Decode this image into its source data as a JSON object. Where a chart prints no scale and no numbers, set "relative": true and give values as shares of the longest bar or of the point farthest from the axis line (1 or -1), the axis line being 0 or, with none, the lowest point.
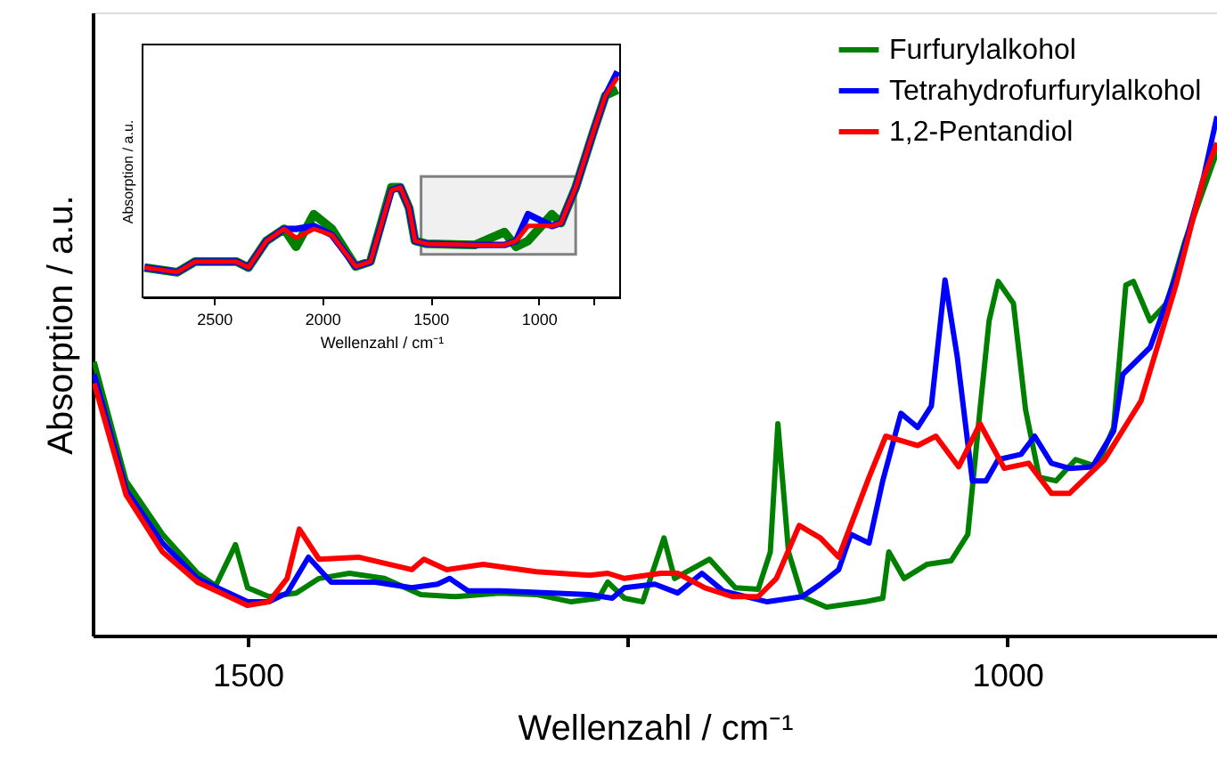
{
  "chart_data": [
    {
      "type": "line",
      "xlabel": "Wellenzahl / cm⁻¹",
      "ylabel": "Absorption / a.u.",
      "relative": true,
      "xlim": [
        1602,
        862
      ],
      "xticks": [
        1500,
        {
          "value": 1250,
          "label": null
        },
        1000
      ],
      "legend": "top right",
      "series": [
        {
          "name": "Furfurylalkohol",
          "color": "#008000",
          "x": [
            1601,
            1580,
            1556,
            1533,
            1521,
            1508,
            1500,
            1486,
            1468,
            1453,
            1433,
            1410,
            1386,
            1363,
            1334,
            1310,
            1287,
            1269,
            1263,
            1252,
            1240,
            1226,
            1219,
            1196,
            1179,
            1164,
            1156,
            1151,
            1144,
            1135,
            1119,
            1094,
            1082,
            1078,
            1068,
            1053,
            1037,
            1026,
            1018,
            1012,
            1006,
            996,
            988,
            979,
            968,
            955,
            941,
            930,
            922,
            917,
            906,
            895,
            883,
            862
          ],
          "values": [
            0.527,
            0.298,
            0.195,
            0.12,
            0.096,
            0.175,
            0.092,
            0.075,
            0.082,
            0.11,
            0.12,
            0.11,
            0.079,
            0.075,
            0.082,
            0.079,
            0.065,
            0.072,
            0.103,
            0.072,
            0.065,
            0.188,
            0.11,
            0.147,
            0.092,
            0.089,
            0.161,
            0.408,
            0.161,
            0.075,
            0.055,
            0.065,
            0.072,
            0.161,
            0.11,
            0.137,
            0.144,
            0.195,
            0.435,
            0.606,
            0.682,
            0.64,
            0.435,
            0.305,
            0.298,
            0.339,
            0.325,
            0.401,
            0.675,
            0.682,
            0.606,
            0.64,
            0.76,
            0.932
          ]
        },
        {
          "name": "Tetrahydrofurfurylalkohol",
          "color": "#0000ff",
          "x": [
            1601,
            1580,
            1556,
            1533,
            1500,
            1486,
            1474,
            1460,
            1445,
            1416,
            1392,
            1375,
            1367,
            1355,
            1334,
            1299,
            1275,
            1260,
            1252,
            1232,
            1217,
            1201,
            1187,
            1158,
            1135,
            1123,
            1111,
            1103,
            1091,
            1082,
            1070,
            1059,
            1050,
            1041,
            1033,
            1023,
            1014,
            1006,
            991,
            982,
            971,
            959,
            944,
            930,
            924,
            906,
            889,
            871,
            862
          ],
          "values": [
            0.503,
            0.281,
            0.178,
            0.11,
            0.065,
            0.065,
            0.082,
            0.151,
            0.103,
            0.103,
            0.092,
            0.099,
            0.11,
            0.086,
            0.086,
            0.082,
            0.079,
            0.072,
            0.092,
            0.099,
            0.082,
            0.12,
            0.086,
            0.065,
            0.075,
            0.099,
            0.127,
            0.195,
            0.178,
            0.298,
            0.428,
            0.401,
            0.442,
            0.685,
            0.538,
            0.298,
            0.298,
            0.339,
            0.349,
            0.384,
            0.332,
            0.322,
            0.325,
            0.394,
            0.503,
            0.555,
            0.692,
            0.88,
            1.0
          ]
        },
        {
          "name": "1,2-Pentandiol",
          "color": "#ff0000",
          "x": [
            1601,
            1580,
            1556,
            1533,
            1500,
            1486,
            1474,
            1466,
            1453,
            1427,
            1392,
            1384,
            1369,
            1345,
            1310,
            1275,
            1263,
            1252,
            1228,
            1217,
            1199,
            1181,
            1164,
            1152,
            1137,
            1123,
            1111,
            1091,
            1080,
            1059,
            1047,
            1032,
            1018,
            1002,
            986,
            971,
            959,
            936,
            912,
            889,
            871,
            862
          ],
          "values": [
            0.486,
            0.271,
            0.161,
            0.103,
            0.058,
            0.065,
            0.11,
            0.205,
            0.147,
            0.151,
            0.127,
            0.147,
            0.127,
            0.137,
            0.123,
            0.116,
            0.12,
            0.11,
            0.12,
            0.12,
            0.092,
            0.075,
            0.075,
            0.11,
            0.212,
            0.188,
            0.151,
            0.305,
            0.384,
            0.366,
            0.384,
            0.325,
            0.408,
            0.322,
            0.332,
            0.274,
            0.274,
            0.339,
            0.452,
            0.675,
            0.88,
            0.949
          ]
        }
      ]
    },
    {
      "type": "line",
      "xlabel": "Wellenzahl / cm⁻¹",
      "ylabel": "Absorption / a.u.",
      "relative": true,
      "xlim": [
        2830,
        625
      ],
      "xticks": [
        2500,
        2000,
        1500,
        1000,
        {
          "value": 750,
          "label": null
        }
      ],
      "bands": [
        {
          "axis": "x",
          "from": 1544,
          "to": 830,
          "color": "#808080"
        }
      ],
      "series": [
        {
          "color": "#008000",
          "x": [
            2821,
            2670,
            2588,
            2396,
            2341,
            2258,
            2176,
            2121,
            2039,
            1956,
            1846,
            1778,
            1681,
            1640,
            1599,
            1572,
            1517,
            1297,
            1159,
            1105,
            1050,
            940,
            898,
            830,
            747,
            692,
            637
          ],
          "values": [
            0.132,
            0.111,
            0.158,
            0.158,
            0.132,
            0.25,
            0.303,
            0.224,
            0.368,
            0.303,
            0.137,
            0.158,
            0.487,
            0.487,
            0.395,
            0.25,
            0.237,
            0.232,
            0.289,
            0.224,
            0.25,
            0.368,
            0.329,
            0.487,
            0.737,
            0.895,
            0.92
          ]
        },
        {
          "color": "#0000ff",
          "x": [
            2821,
            2670,
            2588,
            2396,
            2341,
            2258,
            2176,
            2121,
            2039,
            1956,
            1846,
            1778,
            1681,
            1640,
            1599,
            1572,
            1517,
            1297,
            1159,
            1105,
            1050,
            940,
            898,
            830,
            747,
            692,
            637
          ],
          "values": [
            0.132,
            0.111,
            0.158,
            0.158,
            0.132,
            0.25,
            0.303,
            0.303,
            0.316,
            0.276,
            0.137,
            0.158,
            0.474,
            0.487,
            0.395,
            0.25,
            0.237,
            0.232,
            0.232,
            0.25,
            0.368,
            0.316,
            0.329,
            0.487,
            0.737,
            0.895,
            1.0
          ]
        },
        {
          "color": "#ff0000",
          "x": [
            2821,
            2670,
            2588,
            2396,
            2341,
            2258,
            2176,
            2121,
            2039,
            1956,
            1846,
            1778,
            1681,
            1640,
            1599,
            1572,
            1517,
            1297,
            1159,
            1105,
            1050,
            940,
            898,
            830,
            747,
            692,
            637
          ],
          "values": [
            0.132,
            0.111,
            0.158,
            0.158,
            0.132,
            0.25,
            0.303,
            0.263,
            0.303,
            0.276,
            0.137,
            0.158,
            0.474,
            0.487,
            0.395,
            0.25,
            0.237,
            0.232,
            0.232,
            0.25,
            0.316,
            0.316,
            0.329,
            0.487,
            0.737,
            0.895,
            0.974
          ]
        }
      ]
    }
  ]
}
